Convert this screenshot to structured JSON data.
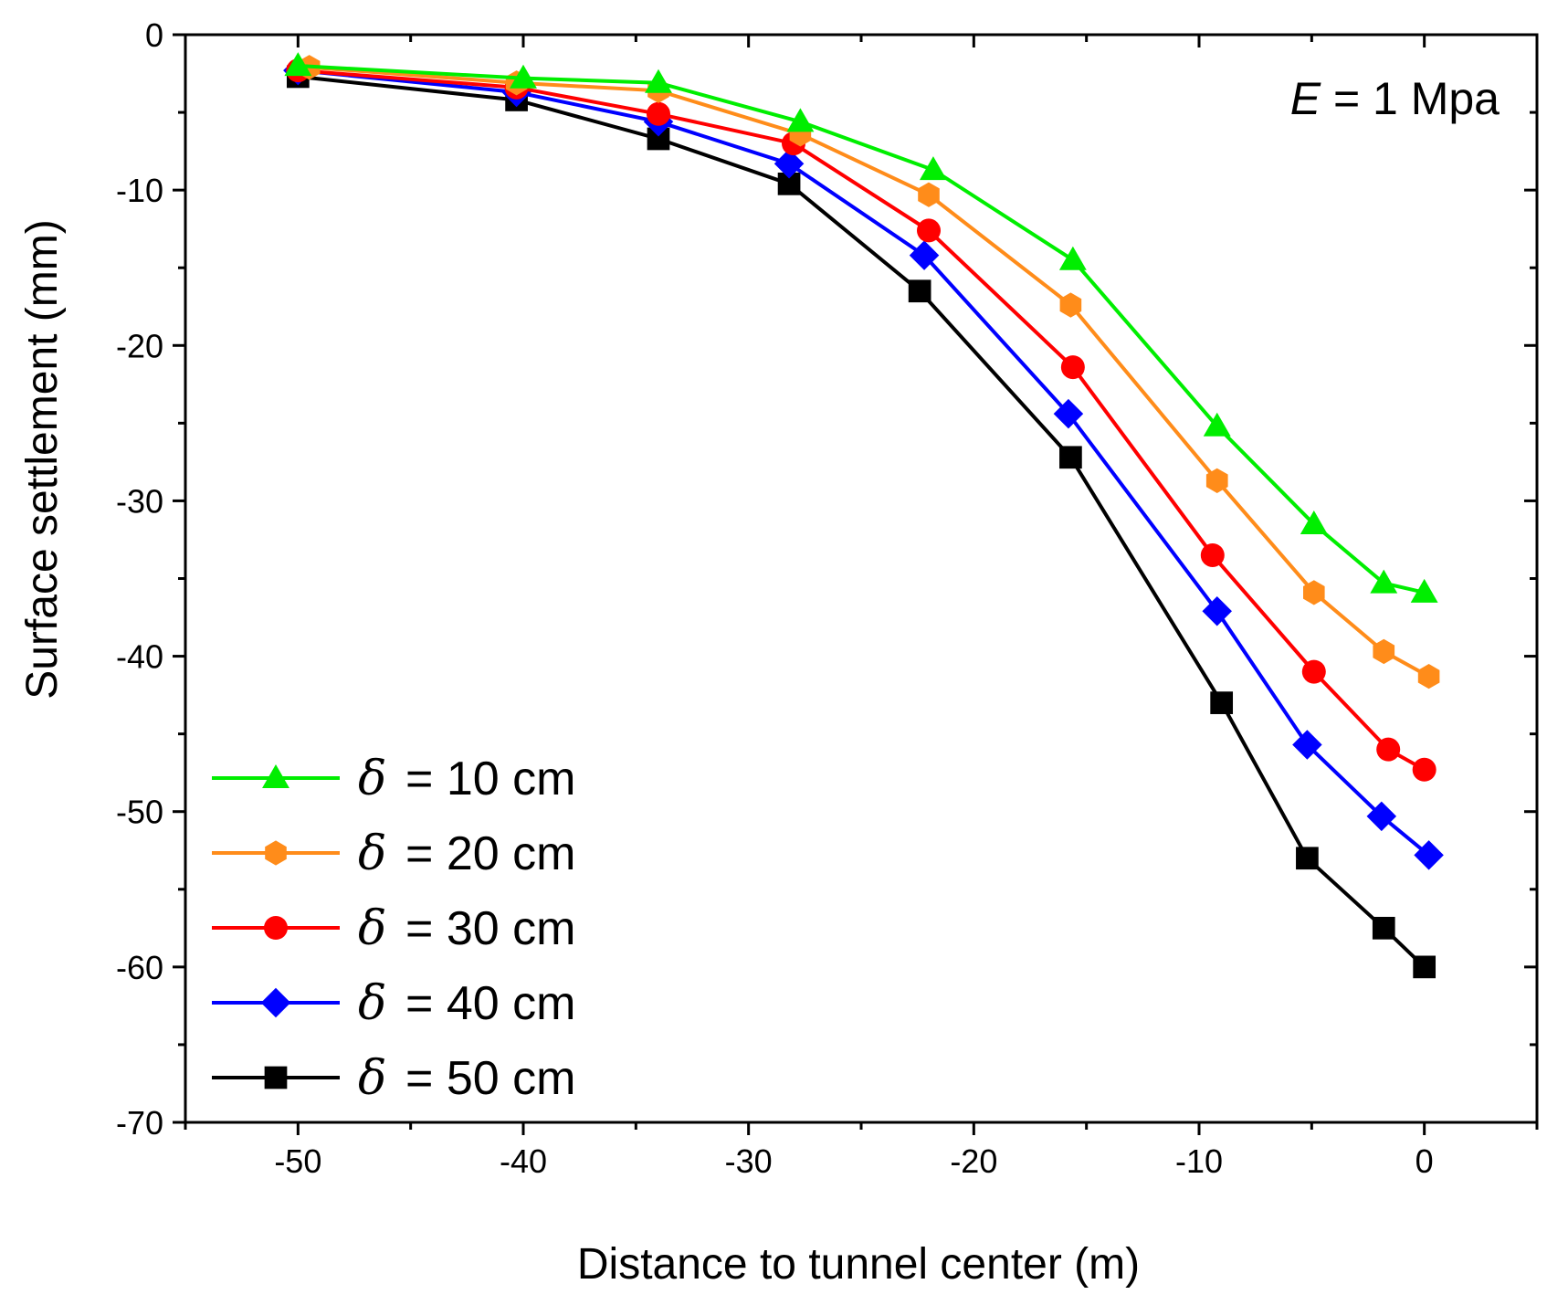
{
  "chart_data": {
    "type": "line",
    "xlabel": "Distance to tunnel center (m)",
    "ylabel": "Surface settlement (mm)",
    "xlim": [
      -55,
      5
    ],
    "ylim": [
      -70,
      0
    ],
    "xticks": [
      -50,
      -40,
      -30,
      -20,
      -10,
      0
    ],
    "yticks": [
      0,
      -10,
      -20,
      -30,
      -40,
      -50,
      -60,
      -70
    ],
    "annotation": {
      "symbol": "E",
      "text": " = 1 Mpa"
    },
    "legend_position": "bottom-left",
    "series": [
      {
        "name": "δ = 10 cm",
        "symbol": "δ",
        "label": "= 10 cm",
        "color": "#00ee00",
        "marker": "triangle",
        "x": [
          -50,
          -40,
          -34,
          -27.7,
          -21.8,
          -15.6,
          -9.2,
          -4.9,
          -1.8,
          0
        ],
        "y": [
          -2.0,
          -2.8,
          -3.1,
          -5.6,
          -8.7,
          -14.5,
          -25.2,
          -31.5,
          -35.3,
          -35.9
        ]
      },
      {
        "name": "δ = 20 cm",
        "symbol": "δ",
        "label": "= 20 cm",
        "color": "#ff8c1a",
        "marker": "hexagon",
        "x": [
          -49.5,
          -40.3,
          -34.0,
          -27.7,
          -22.0,
          -15.7,
          -9.2,
          -4.9,
          -1.8,
          0.2
        ],
        "y": [
          -2.1,
          -3.1,
          -3.6,
          -6.4,
          -10.3,
          -17.4,
          -28.7,
          -35.9,
          -39.7,
          -41.3
        ]
      },
      {
        "name": "δ = 30 cm",
        "symbol": "δ",
        "label": "= 30 cm",
        "color": "#ff0000",
        "marker": "circle",
        "x": [
          -50,
          -40.3,
          -34.0,
          -28.0,
          -22.0,
          -15.6,
          -9.4,
          -4.9,
          -1.6,
          0
        ],
        "y": [
          -2.3,
          -3.4,
          -5.1,
          -7.0,
          -12.6,
          -21.4,
          -33.5,
          -41.0,
          -46.0,
          -47.3
        ]
      },
      {
        "name": "δ = 40 cm",
        "symbol": "δ",
        "label": "= 40 cm",
        "color": "#0000ff",
        "marker": "diamond",
        "x": [
          -50,
          -40.3,
          -34.0,
          -28.2,
          -22.2,
          -15.8,
          -9.2,
          -5.2,
          -1.9,
          0.2
        ],
        "y": [
          -2.3,
          -3.7,
          -5.6,
          -8.3,
          -14.2,
          -24.4,
          -37.1,
          -45.7,
          -50.3,
          -52.8
        ]
      },
      {
        "name": "δ = 50 cm",
        "symbol": "δ",
        "label": "= 50 cm",
        "color": "#000000",
        "marker": "square",
        "x": [
          -50,
          -40.3,
          -34.0,
          -28.2,
          -22.4,
          -15.7,
          -9.0,
          -5.2,
          -1.8,
          0
        ],
        "y": [
          -2.7,
          -4.2,
          -6.7,
          -9.6,
          -16.5,
          -27.2,
          -43.0,
          -53.0,
          -57.5,
          -60.0
        ]
      }
    ]
  }
}
